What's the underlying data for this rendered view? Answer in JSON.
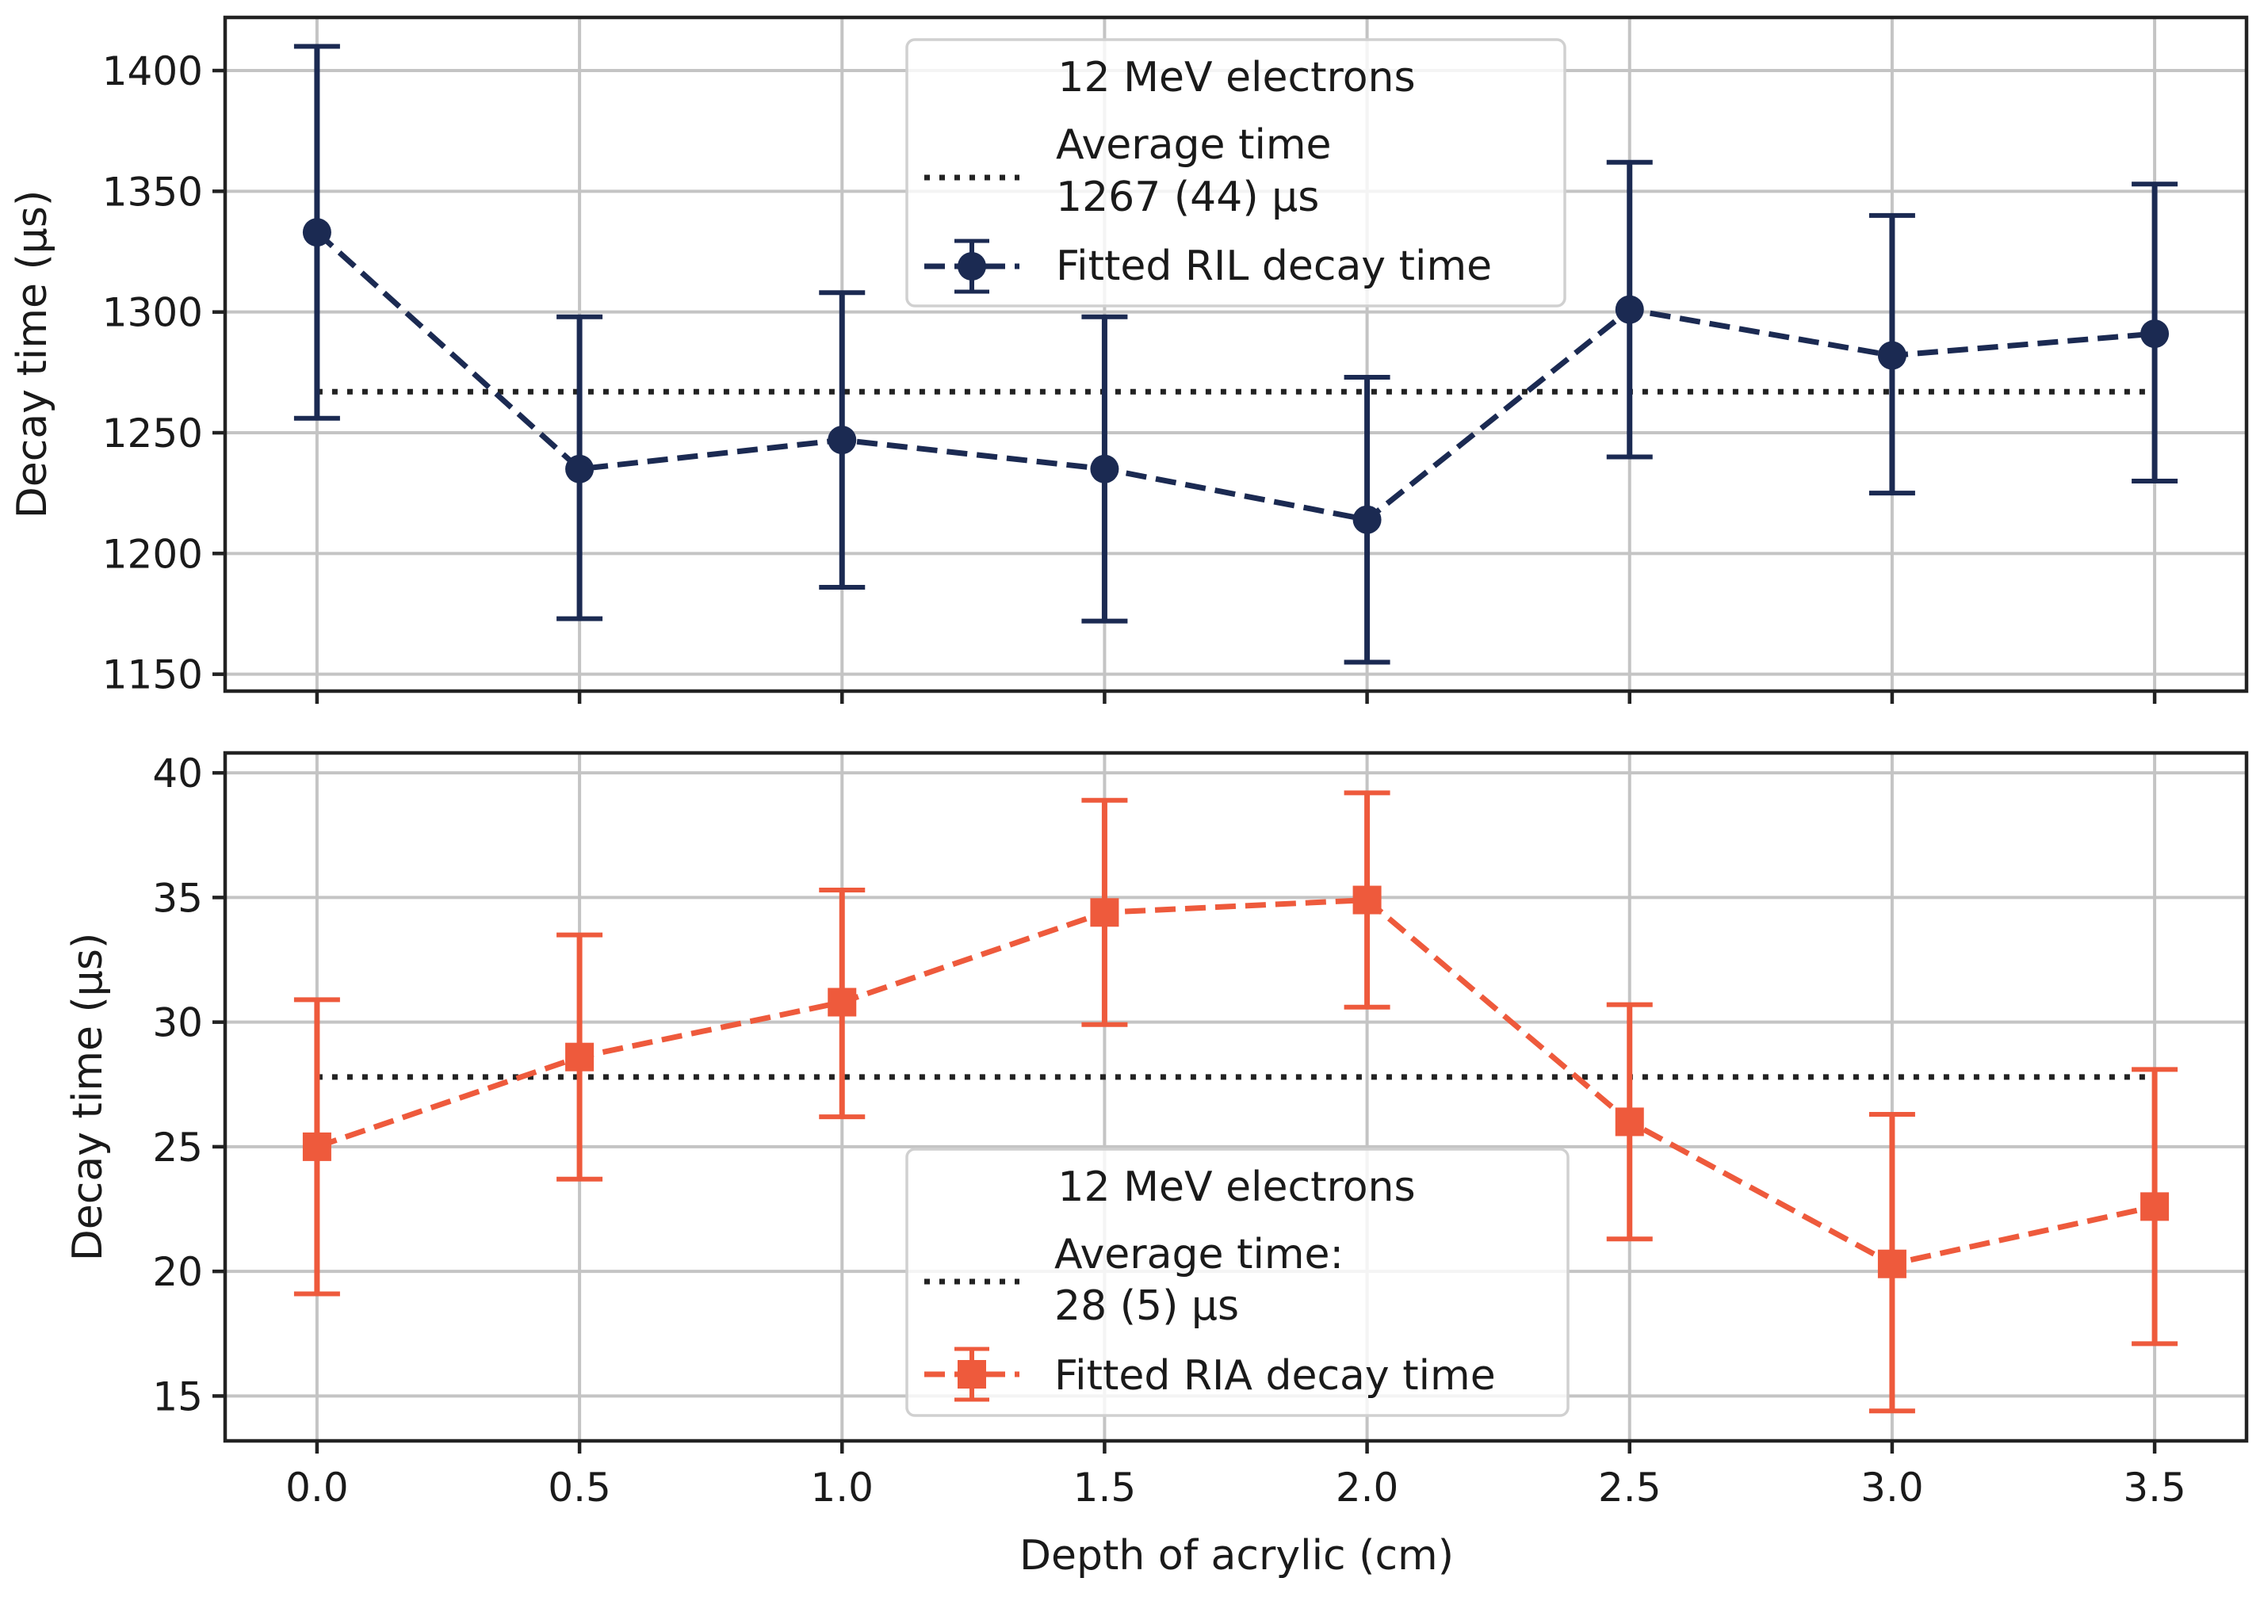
{
  "chart_data": [
    {
      "type": "line",
      "panel": "top",
      "xlabel": "",
      "ylabel": "Decay time (µs)",
      "x": [
        0.0,
        0.5,
        1.0,
        1.5,
        2.0,
        2.5,
        3.0,
        3.5
      ],
      "xlim": [
        -0.175,
        3.675
      ],
      "ylim": [
        1143,
        1422
      ],
      "yticks": [
        1150,
        1200,
        1250,
        1300,
        1350,
        1400
      ],
      "ytick_labels": [
        "1150",
        "1200",
        "1250",
        "1300",
        "1350",
        "1400"
      ],
      "grid": true,
      "series": [
        {
          "name": "Fitted RIL decay time",
          "marker": "circle",
          "linestyle": "dashed",
          "color": "#1b2a52",
          "values": [
            1333,
            1235,
            1247,
            1235,
            1214,
            1301,
            1282,
            1291
          ],
          "err_low": [
            1256,
            1173,
            1186,
            1172,
            1155,
            1240,
            1225,
            1230
          ],
          "err_high": [
            1410,
            1298,
            1308,
            1298,
            1273,
            1362,
            1340,
            1353
          ]
        }
      ],
      "average": {
        "value": 1267,
        "color": "#222222",
        "linestyle": "dotted"
      },
      "legend": {
        "placement": "top-center",
        "title": "12 MeV electrons",
        "average_label_line1": "Average time",
        "average_label_line2": "1267 (44) µs",
        "series_label": "Fitted RIL decay time"
      }
    },
    {
      "type": "line",
      "panel": "bottom",
      "xlabel": "Depth of acrylic (cm)",
      "ylabel": "Decay time (µs)",
      "x": [
        0.0,
        0.5,
        1.0,
        1.5,
        2.0,
        2.5,
        3.0,
        3.5
      ],
      "xticks": [
        0.0,
        0.5,
        1.0,
        1.5,
        2.0,
        2.5,
        3.0,
        3.5
      ],
      "xtick_labels": [
        "0.0",
        "0.5",
        "1.0",
        "1.5",
        "2.0",
        "2.5",
        "3.0",
        "3.5"
      ],
      "xlim": [
        -0.175,
        3.675
      ],
      "ylim": [
        13.2,
        40.8
      ],
      "yticks": [
        15,
        20,
        25,
        30,
        35,
        40
      ],
      "ytick_labels": [
        "15",
        "20",
        "25",
        "30",
        "35",
        "40"
      ],
      "grid": true,
      "series": [
        {
          "name": "Fitted RIA decay time",
          "marker": "square",
          "linestyle": "dashed",
          "color": "#ee5a3c",
          "values": [
            25.0,
            28.6,
            30.8,
            34.4,
            34.9,
            26.0,
            20.3,
            22.6
          ],
          "err_low": [
            19.1,
            23.7,
            26.2,
            29.9,
            30.6,
            21.3,
            14.4,
            17.1
          ],
          "err_high": [
            30.9,
            33.5,
            35.3,
            38.9,
            39.2,
            30.7,
            26.3,
            28.1
          ]
        }
      ],
      "average": {
        "value": 27.8,
        "color": "#222222",
        "linestyle": "dotted"
      },
      "legend": {
        "placement": "bottom-center",
        "title": "12 MeV electrons",
        "average_label_line1": "Average time:",
        "average_label_line2": "28 (5) µs",
        "series_label": "Fitted RIA decay time"
      }
    }
  ]
}
